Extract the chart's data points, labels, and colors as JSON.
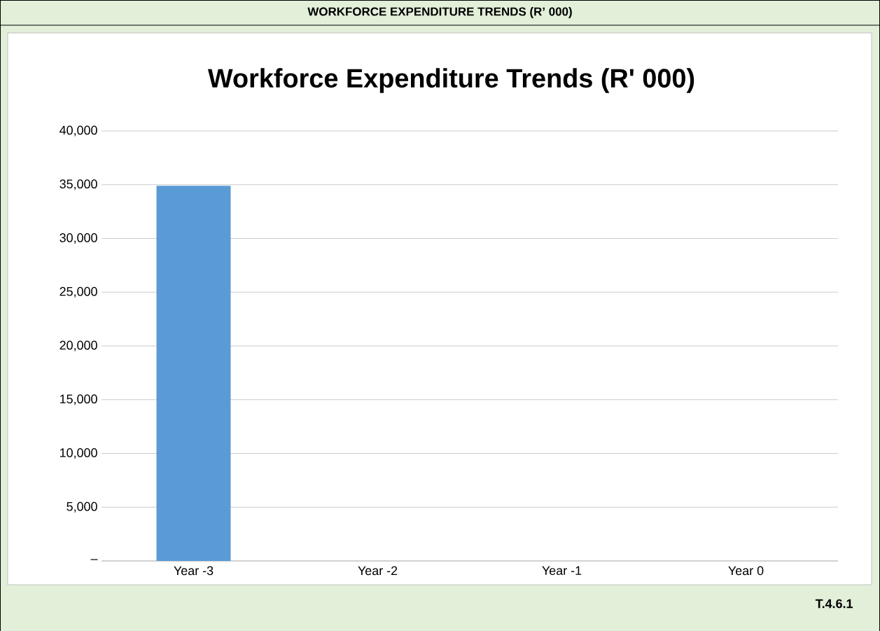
{
  "chart_data": {
    "type": "bar",
    "title": "Workforce Expenditure Trends (R' 000)",
    "annotations": [
      "WORKFORCE EXPENDITURE TRENDS (R’ 000)",
      "T.4.6.1"
    ],
    "categories": [
      "Year -3",
      "Year -2",
      "Year -1",
      "Year 0"
    ],
    "values": [
      34900,
      null,
      null,
      null
    ],
    "color": "#5b9bd5",
    "ylim": [
      0,
      40000
    ],
    "yticks": [
      {
        "value": 0,
        "label": "–"
      },
      {
        "value": 5000,
        "label": "5,000"
      },
      {
        "value": 10000,
        "label": "10,000"
      },
      {
        "value": 15000,
        "label": "15,000"
      },
      {
        "value": 20000,
        "label": "20,000"
      },
      {
        "value": 25000,
        "label": "25,000"
      },
      {
        "value": 30000,
        "label": "30,000"
      },
      {
        "value": 35000,
        "label": "35,000"
      },
      {
        "value": 40000,
        "label": "40,000"
      }
    ],
    "grid": "y"
  }
}
